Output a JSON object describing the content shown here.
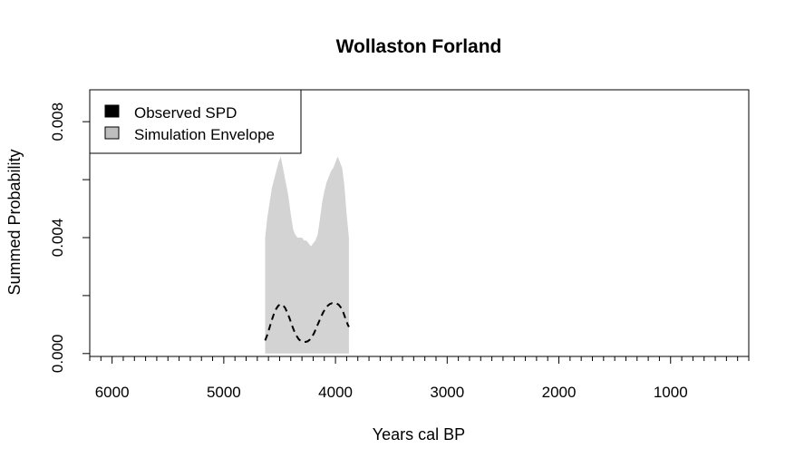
{
  "chart_data": {
    "type": "area",
    "title": "Wollaston Forland",
    "xlabel": "Years cal BP",
    "ylabel": "Summed Probability",
    "xlim": [
      6200,
      300
    ],
    "ylim": [
      -0.0001,
      0.0091
    ],
    "x_ticks": [
      6000,
      5000,
      4000,
      3000,
      2000,
      1000
    ],
    "x_tick_labels": [
      "6000",
      "5000",
      "4000",
      "3000",
      "2000",
      "1000"
    ],
    "x_minor_step": 100,
    "y_ticks": [
      0.0,
      0.002,
      0.004,
      0.006,
      0.008
    ],
    "y_tick_labels": [
      "0.000",
      "",
      "0.004",
      "",
      "0.008"
    ],
    "grid": false,
    "legend_position": "top-left",
    "legend": [
      {
        "label": "Observed SPD",
        "color": "#000000"
      },
      {
        "label": "Simulation Envelope",
        "color": "#bebebe"
      }
    ],
    "series": [
      {
        "name": "Simulation Envelope",
        "kind": "envelope",
        "color": "#d3d3d3",
        "x": [
          4630,
          4610,
          4590,
          4570,
          4550,
          4530,
          4510,
          4490,
          4480,
          4470,
          4460,
          4440,
          4420,
          4400,
          4380,
          4360,
          4340,
          4320,
          4300,
          4280,
          4260,
          4240,
          4220,
          4200,
          4180,
          4160,
          4140,
          4120,
          4100,
          4080,
          4060,
          4040,
          4020,
          4000,
          3980,
          3960,
          3940,
          3920,
          3900,
          3880
        ],
        "lower": [
          0,
          0,
          0,
          0,
          0,
          0,
          0,
          0,
          0,
          0,
          0,
          0,
          0,
          0,
          0,
          0,
          0,
          0,
          0,
          0,
          0,
          0,
          0,
          0,
          0,
          0,
          0,
          0,
          0,
          0,
          0,
          0,
          0,
          0,
          0,
          0,
          0,
          0,
          0,
          0
        ],
        "upper": [
          0.004,
          0.0047,
          0.0052,
          0.0057,
          0.006,
          0.0063,
          0.0066,
          0.0068,
          0.0066,
          0.0064,
          0.0062,
          0.0058,
          0.0054,
          0.0048,
          0.0043,
          0.0041,
          0.004,
          0.004,
          0.004,
          0.0039,
          0.0039,
          0.0038,
          0.0037,
          0.0038,
          0.0039,
          0.0041,
          0.0046,
          0.0052,
          0.0056,
          0.0059,
          0.0061,
          0.0063,
          0.0064,
          0.0066,
          0.0068,
          0.0066,
          0.0064,
          0.0058,
          0.0048,
          0.004
        ]
      },
      {
        "name": "Observed SPD",
        "kind": "line",
        "color": "#000000",
        "dash": "dashed",
        "x": [
          4630,
          4610,
          4590,
          4570,
          4550,
          4530,
          4510,
          4490,
          4470,
          4450,
          4430,
          4410,
          4390,
          4370,
          4350,
          4330,
          4310,
          4290,
          4270,
          4250,
          4230,
          4210,
          4190,
          4170,
          4150,
          4130,
          4110,
          4090,
          4070,
          4050,
          4030,
          4010,
          3990,
          3970,
          3950,
          3930,
          3910,
          3890,
          3880
        ],
        "y": [
          0.00045,
          0.00065,
          0.0009,
          0.00115,
          0.00138,
          0.00155,
          0.00166,
          0.0017,
          0.00167,
          0.00157,
          0.0014,
          0.0012,
          0.00098,
          0.00078,
          0.00062,
          0.0005,
          0.00043,
          0.0004,
          0.0004,
          0.00042,
          0.00048,
          0.00058,
          0.00072,
          0.0009,
          0.00108,
          0.00126,
          0.00142,
          0.00155,
          0.00165,
          0.00171,
          0.00174,
          0.00175,
          0.00173,
          0.00168,
          0.00158,
          0.00142,
          0.0012,
          0.001,
          0.00092
        ]
      }
    ]
  }
}
